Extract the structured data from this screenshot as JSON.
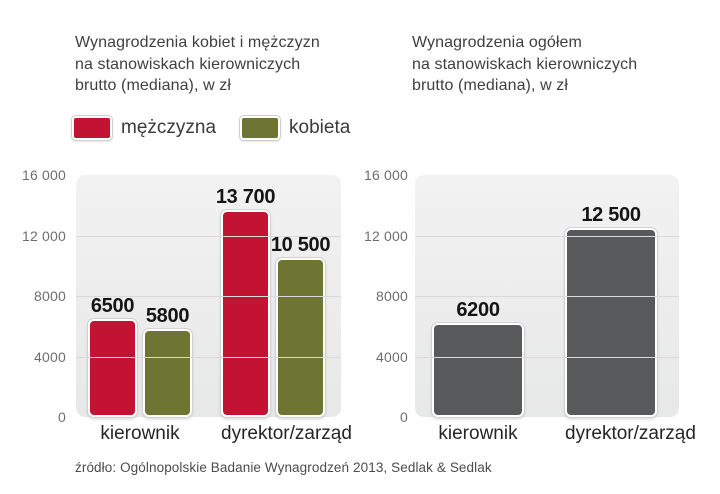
{
  "source_note": "źródło: Ogólnopolskie Badanie Wynagrodzeń 2013, Sedlak & Sedlak",
  "colors": {
    "man": "#c21333",
    "woman": "#6e7431",
    "overall": "#58595b",
    "plot_background": "#eeeeee",
    "gridline": "#d9d9d9"
  },
  "chart_data": [
    {
      "type": "bar",
      "title": "Wynagrodzenia kobiet i mężczyzn\nna stanowiskach kierowniczych\nbrutto (mediana), w zł",
      "categories": [
        "kierownik",
        "dyrektor/zarząd"
      ],
      "series": [
        {
          "name": "mężczyzna",
          "color": "#c21333",
          "values": [
            6500,
            13700
          ],
          "value_labels": [
            "6500",
            "13 700"
          ]
        },
        {
          "name": "kobieta",
          "color": "#6e7431",
          "values": [
            5800,
            10500
          ],
          "value_labels": [
            "5800",
            "10 500"
          ]
        }
      ],
      "legend": [
        {
          "label": "mężczyzna",
          "color": "#c21333"
        },
        {
          "label": "kobieta",
          "color": "#6e7431"
        }
      ],
      "legend_position": "top-left",
      "grid": true,
      "ylim": [
        0,
        16000
      ],
      "yticks": [
        {
          "value": 16000,
          "label": "16 000"
        },
        {
          "value": 12000,
          "label": "12 000"
        },
        {
          "value": 8000,
          "label": "8000"
        },
        {
          "value": 4000,
          "label": "4000"
        },
        {
          "value": 0,
          "label": "0"
        }
      ]
    },
    {
      "type": "bar",
      "title": "Wynagrodzenia ogółem\nna stanowiskach kierowniczych\nbrutto (mediana), w zł",
      "categories": [
        "kierownik",
        "dyrektor/zarząd"
      ],
      "series": [
        {
          "name": "ogółem",
          "color": "#58595b",
          "values": [
            6200,
            12500
          ],
          "value_labels": [
            "6200",
            "12 500"
          ]
        }
      ],
      "legend": [],
      "grid": true,
      "ylim": [
        0,
        16000
      ],
      "yticks": [
        {
          "value": 16000,
          "label": "16 000"
        },
        {
          "value": 12000,
          "label": "12 000"
        },
        {
          "value": 8000,
          "label": "8000"
        },
        {
          "value": 4000,
          "label": "4000"
        },
        {
          "value": 0,
          "label": "0"
        }
      ]
    }
  ]
}
